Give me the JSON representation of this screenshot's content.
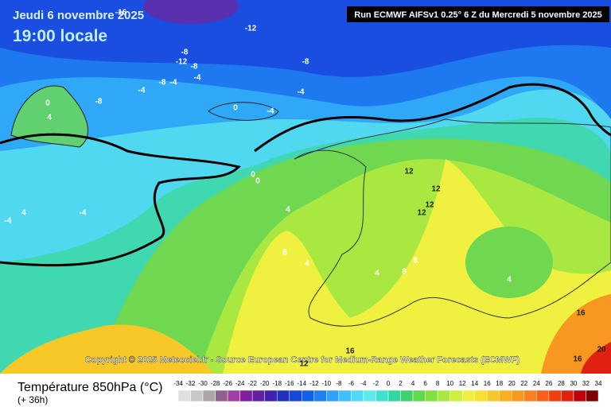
{
  "header": {
    "date": "Jeudi 6 novembre 2025",
    "time": "19:00 locale",
    "run": "Run ECMWF AIFSv1 0.25° 6 Z du Mercredi 5 novembre 2025"
  },
  "copyright": "Copyright © 2025 Meteociel.fr - Source European Centre for Medium-Range Weather Forecasts (ECMWF)",
  "legend": {
    "title": "Température 850hPa (°C)",
    "lead": "(+ 36h)",
    "ticks": [
      -34,
      -32,
      -30,
      -28,
      -26,
      -24,
      -22,
      -20,
      -18,
      -16,
      -14,
      -12,
      -10,
      -8,
      -6,
      -4,
      -2,
      0,
      2,
      4,
      6,
      8,
      10,
      12,
      14,
      16,
      18,
      20,
      22,
      24,
      26,
      28,
      30,
      32,
      34
    ],
    "colors": [
      "#e0e0e0",
      "#c8c8c8",
      "#a8a8a8",
      "#906090",
      "#a040a0",
      "#8020a0",
      "#6020a0",
      "#4020b0",
      "#2030c0",
      "#1848d8",
      "#1060e8",
      "#2080f0",
      "#30a0f8",
      "#40c0f8",
      "#50d8f8",
      "#60e8f0",
      "#40e0d0",
      "#30d8a0",
      "#40d070",
      "#60d850",
      "#80e040",
      "#a8e840",
      "#d0f040",
      "#f0f040",
      "#f8e030",
      "#f8c828",
      "#f8b020",
      "#f89820",
      "#f88020",
      "#f86018",
      "#f04010",
      "#e02010",
      "#c00010",
      "#800000"
    ]
  },
  "contour_labels": [
    -16,
    -12,
    -8,
    -12,
    -8,
    -4,
    -8,
    -4,
    -4,
    -8,
    -8,
    -4,
    0,
    4,
    0,
    -4,
    0,
    0,
    4,
    -4,
    4,
    -4,
    8,
    4,
    4,
    8,
    8,
    12,
    12,
    12,
    12,
    4,
    16,
    16,
    12,
    16,
    20
  ]
}
